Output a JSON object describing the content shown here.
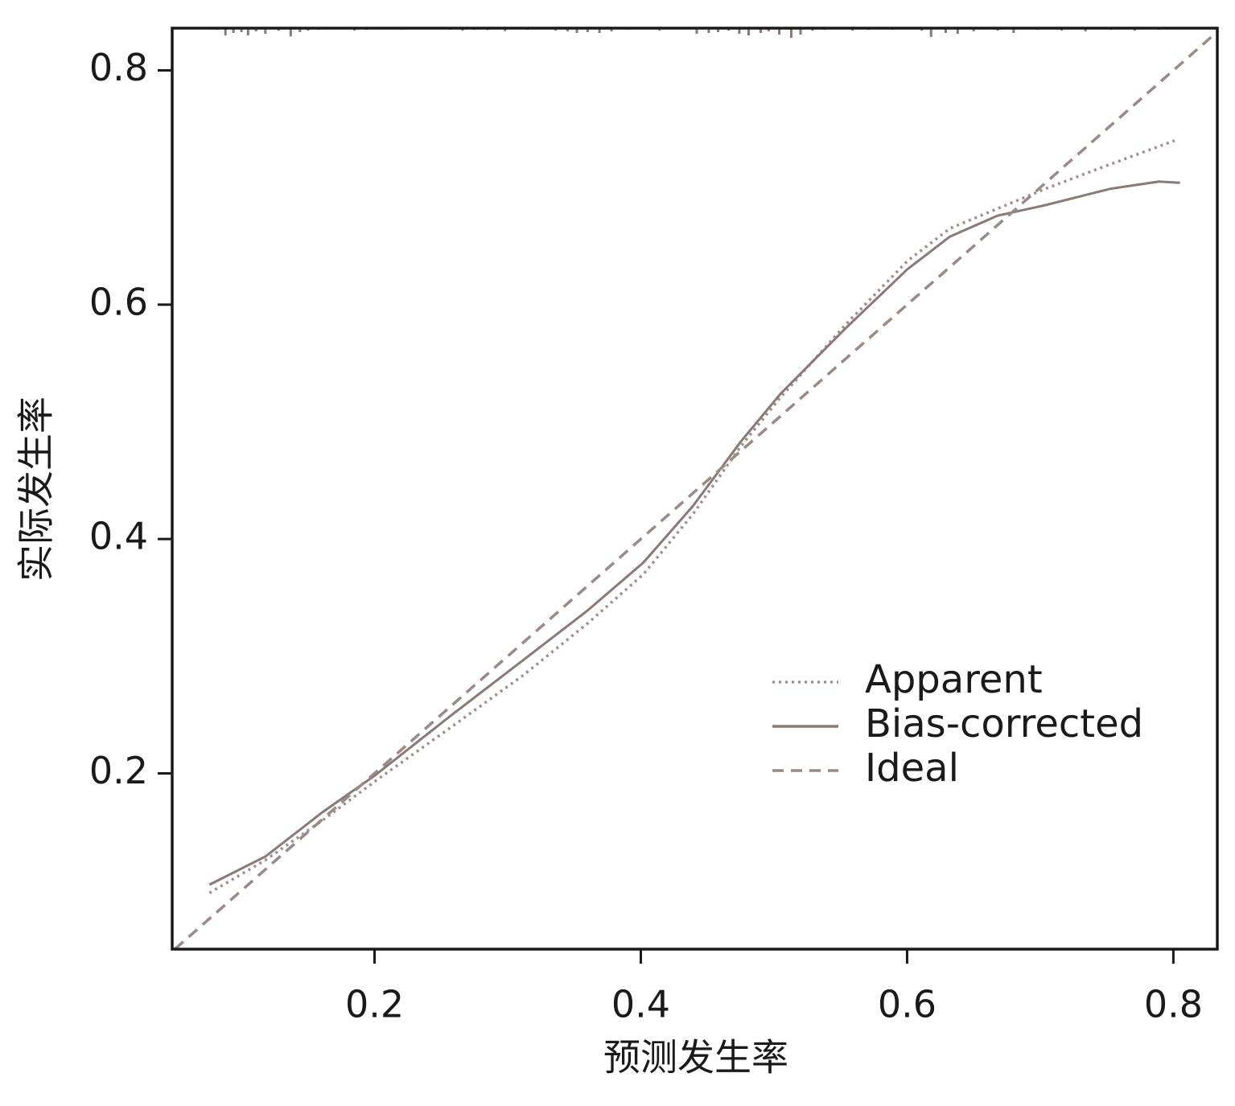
{
  "chart_data": {
    "type": "line",
    "x_label": "预测发生率",
    "y_label": "实际发生率",
    "xlim": [
      0.048,
      0.833
    ],
    "ylim": [
      0.05,
      0.836
    ],
    "xticks": [
      0.2,
      0.4,
      0.6,
      0.8
    ],
    "yticks": [
      0.2,
      0.4,
      0.6,
      0.8
    ],
    "legend": "lower right",
    "series": [
      {
        "name": "Apparent",
        "color": "#a08e8a",
        "style": "dotted",
        "x": [
          0.076,
          0.118,
          0.161,
          0.2,
          0.257,
          0.312,
          0.36,
          0.402,
          0.439,
          0.475,
          0.505,
          0.553,
          0.6,
          0.632,
          0.668,
          0.704,
          0.753,
          0.801
        ],
        "values": [
          0.098,
          0.126,
          0.16,
          0.193,
          0.239,
          0.284,
          0.328,
          0.37,
          0.421,
          0.479,
          0.521,
          0.582,
          0.637,
          0.665,
          0.682,
          0.699,
          0.72,
          0.74
        ]
      },
      {
        "name": "Bias-corrected",
        "color": "#8a7a76",
        "style": "solid",
        "x": [
          0.076,
          0.118,
          0.161,
          0.2,
          0.257,
          0.312,
          0.36,
          0.402,
          0.439,
          0.475,
          0.505,
          0.553,
          0.6,
          0.632,
          0.668,
          0.704,
          0.753,
          0.789,
          0.805
        ],
        "values": [
          0.105,
          0.129,
          0.167,
          0.198,
          0.249,
          0.297,
          0.339,
          0.38,
          0.428,
          0.483,
          0.524,
          0.579,
          0.63,
          0.658,
          0.676,
          0.685,
          0.699,
          0.705,
          0.704
        ]
      },
      {
        "name": "Ideal",
        "color": "#9a8a86",
        "style": "dashed",
        "x": [
          0.05,
          0.833
        ],
        "values": [
          0.05,
          0.833
        ]
      }
    ],
    "rug": {
      "color": "#8a7a76",
      "x": [
        0.064,
        0.073,
        0.082,
        0.088,
        0.094,
        0.1,
        0.105,
        0.111,
        0.118,
        0.128,
        0.137,
        0.144,
        0.15,
        0.158,
        0.167,
        0.185,
        0.194,
        0.203,
        0.221,
        0.257,
        0.266,
        0.275,
        0.285,
        0.298,
        0.315,
        0.336,
        0.345,
        0.352,
        0.36,
        0.369,
        0.378,
        0.39,
        0.414,
        0.442,
        0.451,
        0.458,
        0.466,
        0.474,
        0.481,
        0.49,
        0.496,
        0.504,
        0.513,
        0.52,
        0.529,
        0.538,
        0.547,
        0.559,
        0.571,
        0.589,
        0.611,
        0.618,
        0.629,
        0.638,
        0.65,
        0.668,
        0.68,
        0.698,
        0.716,
        0.734,
        0.753,
        0.771,
        0.789,
        0.807,
        0.825
      ],
      "values": [
        0.0007,
        0.0011,
        0.0014,
        0.0062,
        0.0041,
        0.0034,
        0.0062,
        0.0027,
        0.0048,
        0.0021,
        0.0071,
        0.0034,
        0.0021,
        0.0014,
        0.0011,
        0.0021,
        0.0014,
        0.0011,
        0.0014,
        0.0014,
        0.0021,
        0.0014,
        0.0016,
        0.0025,
        0.0014,
        0.0021,
        0.0027,
        0.0041,
        0.0034,
        0.0041,
        0.0027,
        0.0014,
        0.0021,
        0.0048,
        0.0041,
        0.0034,
        0.0021,
        0.0048,
        0.0062,
        0.0041,
        0.0027,
        0.0055,
        0.0082,
        0.0055,
        0.0021,
        0.0014,
        0.0011,
        0.0021,
        0.0014,
        0.0014,
        0.0021,
        0.0075,
        0.0041,
        0.0048,
        0.0027,
        0.0021,
        0.0041,
        0.0014,
        0.0021,
        0.0027,
        0.0014,
        0.0021,
        0.0014,
        0.0011,
        0.0007
      ]
    }
  }
}
